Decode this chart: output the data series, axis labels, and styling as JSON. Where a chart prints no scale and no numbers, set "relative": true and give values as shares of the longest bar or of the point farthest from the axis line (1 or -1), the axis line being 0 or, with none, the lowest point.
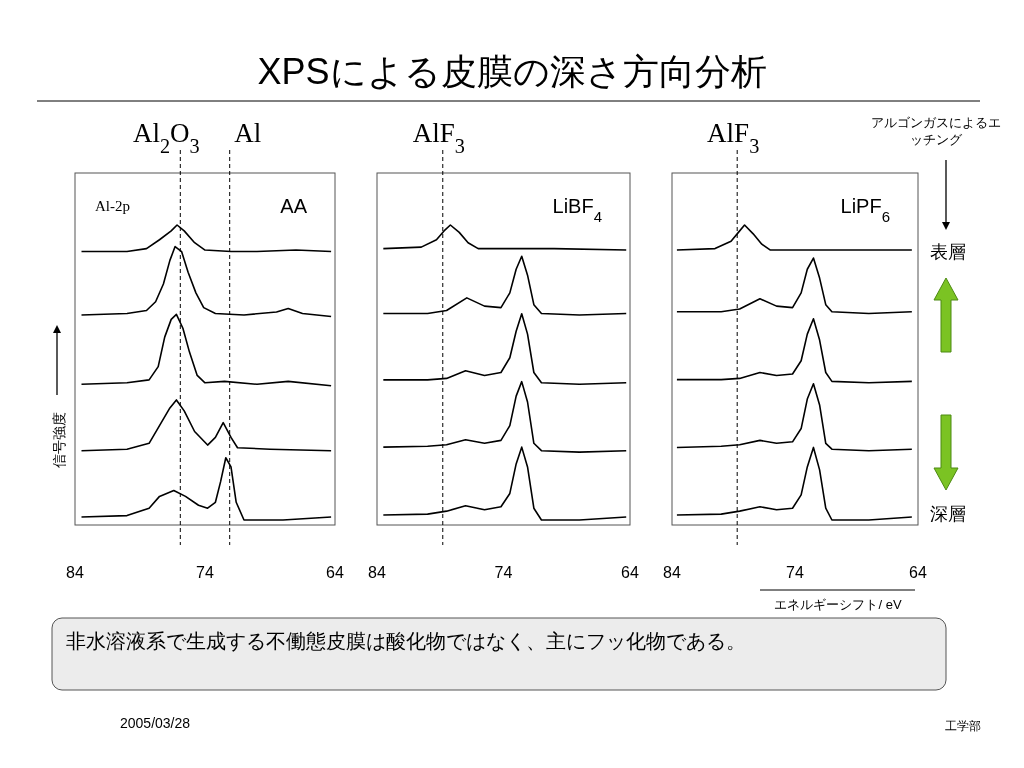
{
  "chart_data": [
    {
      "type": "other",
      "title": "XPSによる皮膜の深さ方向分析",
      "annotations": [
        "非水溶液系で生成する不働態皮膜は酸化物ではなく、主にフッ化物である。",
        "2005/03/28",
        "工学部"
      ]
    },
    {
      "type": "line",
      "title": "AA",
      "ylabel": "信号強度",
      "annotations": [
        "Al-2p"
      ],
      "relative": true,
      "xlim": [
        84,
        64
      ],
      "xticks": [
        84,
        74,
        64
      ],
      "ref_lines": [
        {
          "axis": "x",
          "value": 75.9,
          "label": "Al$_{2}$O$_{3}$",
          "line_style": "dashed"
        },
        {
          "axis": "x",
          "value": 72.1,
          "label": "Al",
          "line_style": "dashed"
        }
      ],
      "series": [
        {
          "color": "#000000",
          "x": [
            83.5,
            80,
            78.5,
            77.5,
            76.6,
            76.15,
            75.6,
            74.8,
            74,
            72,
            70,
            67,
            64.3
          ],
          "values": [
            0.91,
            0.91,
            0.92,
            0.95,
            0.98,
            1.0,
            0.98,
            0.94,
            0.915,
            0.91,
            0.91,
            0.915,
            0.91
          ]
        },
        {
          "color": "#000000",
          "x": [
            83.5,
            80,
            78.5,
            77.8,
            77.2,
            76.7,
            76.3,
            75.8,
            75.3,
            74.7,
            74.1,
            73.2,
            71,
            68.5,
            67.6,
            66.5,
            64.3
          ],
          "values": [
            0.695,
            0.7,
            0.71,
            0.74,
            0.8,
            0.88,
            0.927,
            0.91,
            0.84,
            0.77,
            0.72,
            0.7,
            0.695,
            0.705,
            0.717,
            0.7,
            0.69
          ]
        },
        {
          "color": "#000000",
          "x": [
            83.5,
            80,
            78.3,
            77.6,
            77.1,
            76.6,
            76.2,
            75.7,
            75.2,
            74.6,
            74,
            72.5,
            70,
            67.6,
            64.3
          ],
          "values": [
            0.46,
            0.465,
            0.475,
            0.52,
            0.62,
            0.68,
            0.697,
            0.65,
            0.57,
            0.49,
            0.465,
            0.47,
            0.46,
            0.47,
            0.455
          ]
        },
        {
          "color": "#000000",
          "x": [
            83.5,
            80,
            78.3,
            77.5,
            76.7,
            76.2,
            75.6,
            74.8,
            73.8,
            73.2,
            72.6,
            72.0,
            71.5,
            69,
            64.3
          ],
          "values": [
            0.235,
            0.24,
            0.26,
            0.32,
            0.38,
            0.407,
            0.37,
            0.3,
            0.254,
            0.28,
            0.33,
            0.28,
            0.245,
            0.24,
            0.235
          ]
        },
        {
          "color": "#000000",
          "x": [
            83.5,
            80,
            78.3,
            77.5,
            76.4,
            75.5,
            74.5,
            73.8,
            73.2,
            72.8,
            72.4,
            72.0,
            71.6,
            71,
            68,
            64.3
          ],
          "values": [
            0.01,
            0.015,
            0.04,
            0.08,
            0.1,
            0.08,
            0.05,
            0.04,
            0.06,
            0.13,
            0.211,
            0.18,
            0.06,
            0.0,
            0.0,
            0.01
          ]
        }
      ]
    },
    {
      "type": "line",
      "title": "LiBF$_{4}$",
      "relative": true,
      "xlim": [
        84,
        64
      ],
      "xticks": [
        84,
        74,
        64
      ],
      "ref_lines": [
        {
          "axis": "x",
          "value": 78.8,
          "label": "AlF$_{3}$",
          "line_style": "dashed"
        }
      ],
      "series": [
        {
          "color": "#000000",
          "x": [
            83.5,
            80.5,
            79.3,
            78.7,
            78.2,
            77.5,
            76.8,
            76,
            74,
            70,
            64.3
          ],
          "values": [
            0.92,
            0.925,
            0.95,
            0.98,
            1.0,
            0.975,
            0.94,
            0.92,
            0.92,
            0.92,
            0.915
          ]
        },
        {
          "color": "#000000",
          "x": [
            83.5,
            80,
            78.5,
            76.9,
            75.5,
            74.2,
            73.5,
            73,
            72.56,
            72.1,
            71.6,
            71,
            68,
            64.3
          ],
          "values": [
            0.7,
            0.7,
            0.71,
            0.753,
            0.725,
            0.72,
            0.77,
            0.85,
            0.894,
            0.83,
            0.73,
            0.7,
            0.695,
            0.7
          ]
        },
        {
          "color": "#000000",
          "x": [
            83.5,
            80,
            78.5,
            77,
            75.5,
            74.2,
            73.5,
            73,
            72.56,
            72.1,
            71.6,
            71,
            68,
            64.3
          ],
          "values": [
            0.475,
            0.475,
            0.48,
            0.506,
            0.49,
            0.5,
            0.55,
            0.64,
            0.699,
            0.63,
            0.5,
            0.465,
            0.46,
            0.465
          ]
        },
        {
          "color": "#000000",
          "x": [
            83.5,
            80,
            78.5,
            77,
            75.5,
            74.2,
            73.5,
            73,
            72.56,
            72.1,
            71.6,
            71,
            68,
            64.3
          ],
          "values": [
            0.247,
            0.25,
            0.255,
            0.272,
            0.26,
            0.27,
            0.32,
            0.42,
            0.469,
            0.4,
            0.26,
            0.235,
            0.23,
            0.235
          ]
        },
        {
          "color": "#000000",
          "x": [
            83.5,
            80,
            78.5,
            77,
            75.5,
            74.2,
            73.5,
            73,
            72.56,
            72.1,
            71.6,
            71,
            68,
            64.3
          ],
          "values": [
            0.017,
            0.02,
            0.03,
            0.048,
            0.035,
            0.045,
            0.09,
            0.19,
            0.247,
            0.18,
            0.04,
            0.0,
            0.0,
            0.01
          ]
        }
      ]
    },
    {
      "type": "line",
      "title": "LiPF$_{6}$",
      "xlabel": "エネルギーシフト/ eV",
      "annotations": [
        "アルゴンガスによるエッチング",
        "表層",
        "深層"
      ],
      "relative": true,
      "xlim": [
        84,
        64
      ],
      "xticks": [
        84,
        74,
        64
      ],
      "ref_lines": [
        {
          "axis": "x",
          "value": 78.7,
          "label": "AlF$_{3}$",
          "line_style": "dashed"
        }
      ],
      "series": [
        {
          "color": "#000000",
          "x": [
            83.6,
            80.5,
            79.2,
            78.6,
            78.1,
            77.4,
            76.7,
            76,
            74,
            70,
            64.5
          ],
          "values": [
            0.915,
            0.92,
            0.945,
            0.975,
            1.0,
            0.97,
            0.935,
            0.915,
            0.915,
            0.915,
            0.915
          ]
        },
        {
          "color": "#000000",
          "x": [
            83.6,
            80,
            78.5,
            76.85,
            75.5,
            74.2,
            73.5,
            73,
            72.5,
            72.0,
            71.5,
            71,
            68,
            64.5
          ],
          "values": [
            0.706,
            0.706,
            0.715,
            0.75,
            0.725,
            0.72,
            0.77,
            0.85,
            0.888,
            0.82,
            0.73,
            0.706,
            0.7,
            0.706
          ]
        },
        {
          "color": "#000000",
          "x": [
            83.6,
            80,
            78.5,
            76.85,
            75.5,
            74.2,
            73.5,
            73,
            72.5,
            72.0,
            71.5,
            71,
            68,
            64.5
          ],
          "values": [
            0.476,
            0.476,
            0.48,
            0.5,
            0.49,
            0.495,
            0.54,
            0.63,
            0.682,
            0.61,
            0.5,
            0.47,
            0.465,
            0.47
          ]
        },
        {
          "color": "#000000",
          "x": [
            83.6,
            80,
            78.5,
            76.85,
            75.5,
            74.2,
            73.5,
            73,
            72.5,
            72.0,
            71.5,
            71,
            68,
            64.5
          ],
          "values": [
            0.246,
            0.25,
            0.255,
            0.27,
            0.26,
            0.265,
            0.31,
            0.41,
            0.462,
            0.39,
            0.26,
            0.24,
            0.235,
            0.24
          ]
        },
        {
          "color": "#000000",
          "x": [
            83.6,
            80,
            78.5,
            76.85,
            75.5,
            74.2,
            73.5,
            73,
            72.5,
            72.0,
            71.5,
            71,
            68,
            64.5
          ],
          "values": [
            0.017,
            0.02,
            0.03,
            0.045,
            0.035,
            0.04,
            0.085,
            0.18,
            0.246,
            0.17,
            0.04,
            0.0,
            0.0,
            0.01
          ]
        }
      ]
    }
  ]
}
